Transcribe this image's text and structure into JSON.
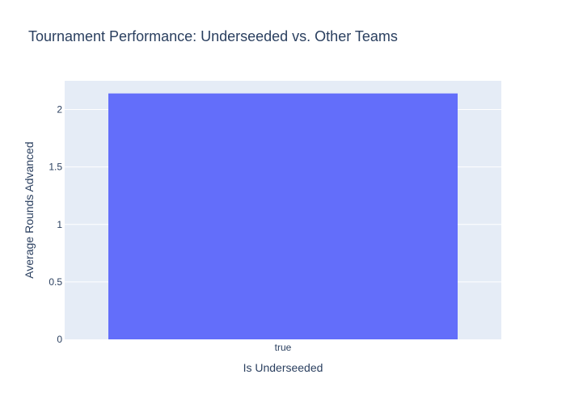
{
  "chart_data": {
    "type": "bar",
    "title": "Tournament Performance: Underseeded vs. Other Teams",
    "xlabel": "Is Underseeded",
    "ylabel": "Average Rounds Advanced",
    "categories": [
      "true"
    ],
    "values": [
      2.14
    ],
    "ylim": [
      0,
      2.25
    ],
    "yticks": [
      0,
      0.5,
      1,
      1.5,
      2
    ],
    "ytick_labels": [
      "0",
      "0.5",
      "1",
      "1.5",
      "2"
    ],
    "grid": true,
    "colors": {
      "bar": "#636efa",
      "plot_background": "#e5ecf6",
      "grid": "#ffffff",
      "text": "#2a3f5f"
    }
  }
}
